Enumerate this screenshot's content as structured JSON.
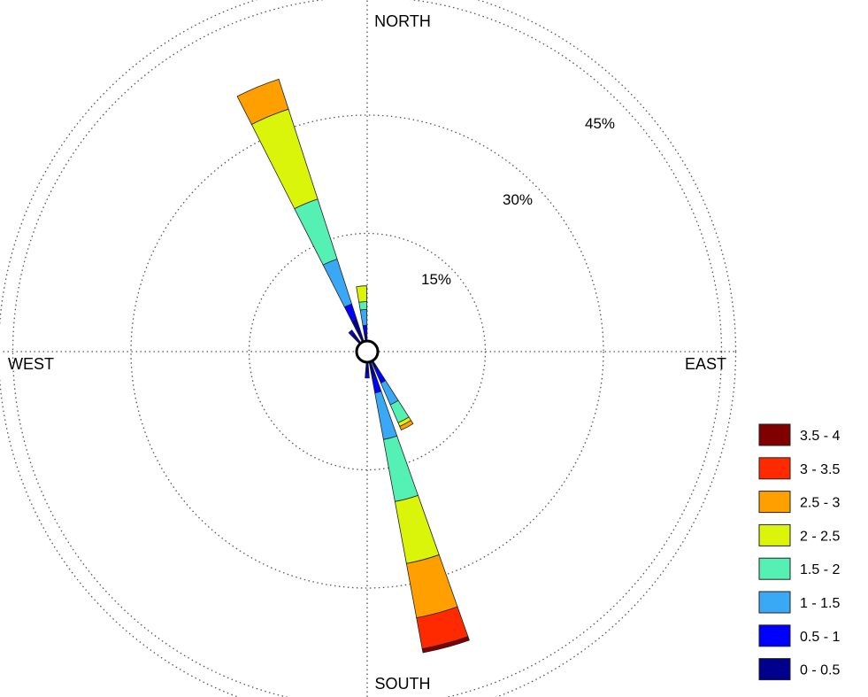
{
  "chart_data": {
    "type": "wind-rose",
    "title": "",
    "directions": {
      "north": "NORTH",
      "south": "SOUTH",
      "east": "EAST",
      "west": "WEST"
    },
    "radial_axis": {
      "unit": "%",
      "max": 52,
      "rings": [
        15,
        30,
        45
      ],
      "ring_labels": [
        "15%",
        "30%",
        "45%"
      ]
    },
    "legend_position": "bottom-right",
    "bins": [
      {
        "label": "0 - 0.5",
        "color": "#00008f"
      },
      {
        "label": "0.5 - 1",
        "color": "#0000ff"
      },
      {
        "label": "1 - 1.5",
        "color": "#3aa9f5"
      },
      {
        "label": "1.5 - 2",
        "color": "#55f0b4"
      },
      {
        "label": "2 - 2.5",
        "color": "#dbf50a"
      },
      {
        "label": "2.5 - 3",
        "color": "#ff9f00"
      },
      {
        "label": "3 - 3.5",
        "color": "#ff2a00"
      },
      {
        "label": "3.5 - 4",
        "color": "#800000"
      }
    ],
    "petals": [
      {
        "direction_deg": 337.5,
        "cumulative_percent": [
          3.0,
          5.0,
          11.0,
          19.0,
          31.0,
          35.0,
          35.0,
          35.0
        ]
      },
      {
        "direction_deg": 165,
        "cumulative_percent": [
          2.0,
          4.0,
          10.0,
          18.0,
          26.0,
          33.0,
          37.0,
          37.5
        ]
      },
      {
        "direction_deg": 152,
        "cumulative_percent": [
          1.0,
          3.0,
          6.0,
          8.5,
          9.0,
          9.5,
          9.5,
          9.5
        ]
      },
      {
        "direction_deg": 355,
        "cumulative_percent": [
          1.0,
          2.0,
          4.0,
          5.0,
          7.0,
          7.0,
          7.0,
          7.0
        ]
      },
      {
        "direction_deg": 320,
        "cumulative_percent": [
          1.5,
          2.0,
          2.0,
          2.0,
          2.0,
          2.0,
          2.0,
          2.0
        ]
      },
      {
        "direction_deg": 180,
        "cumulative_percent": [
          1.5,
          2.0,
          2.0,
          2.0,
          2.0,
          2.0,
          2.0,
          2.0
        ]
      }
    ]
  }
}
